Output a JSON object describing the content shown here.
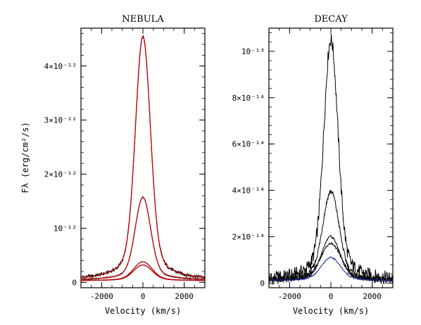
{
  "chart_data": [
    {
      "type": "line",
      "title": "NEBULA",
      "xlabel": "Velocity (km/s)",
      "ylabel": "Fλ (erg/cm²/s)",
      "xlim": [
        -3000,
        3000
      ],
      "ylim": [
        -1e-13,
        4.7e-12
      ],
      "x_ticks": [
        -2000,
        0,
        2000
      ],
      "y_ticks": [
        {
          "value": 0,
          "label": "0"
        },
        {
          "value": 1e-12,
          "label": "10⁻¹²"
        },
        {
          "value": 2e-12,
          "label": "2×10⁻¹²"
        },
        {
          "value": 3e-12,
          "label": "3×10⁻¹²"
        },
        {
          "value": 4e-12,
          "label": "4×10⁻¹²"
        }
      ],
      "series": [
        {
          "color": "#000000",
          "style": "observed",
          "peak": 4.5e-12,
          "width": 350,
          "base": 4.5e-14
        },
        {
          "color": "#c00000",
          "style": "model",
          "peak": 4.5e-12,
          "width": 350,
          "base": 4.5e-14
        },
        {
          "color": "#000000",
          "style": "observed",
          "peak": 1.53e-12,
          "width": 360,
          "base": 4e-14
        },
        {
          "color": "#c00000",
          "style": "model",
          "peak": 1.53e-12,
          "width": 360,
          "base": 4e-14
        },
        {
          "color": "#000000",
          "style": "observed",
          "peak": 3.5e-13,
          "width": 430,
          "base": 3e-14
        },
        {
          "color": "#c00000",
          "style": "model",
          "peak": 3.5e-13,
          "width": 430,
          "base": 3e-14
        },
        {
          "color": "#000000",
          "style": "observed",
          "peak": 2.9e-13,
          "width": 430,
          "base": 3e-14
        },
        {
          "color": "#c00000",
          "style": "model",
          "peak": 2.9e-13,
          "width": 430,
          "base": 3e-14
        }
      ]
    },
    {
      "type": "line",
      "title": "DECAY",
      "xlabel": "Velocity (km/s)",
      "ylabel": "",
      "xlim": [
        -3000,
        3000
      ],
      "ylim": [
        -2e-15,
        1.1e-13
      ],
      "x_ticks": [
        -2000,
        0,
        2000
      ],
      "y_ticks": [
        {
          "value": 0,
          "label": "0"
        },
        {
          "value": 2e-14,
          "label": "2×10⁻¹⁴"
        },
        {
          "value": 4e-14,
          "label": "4×10⁻¹⁴"
        },
        {
          "value": 6e-14,
          "label": "6×10⁻¹⁴"
        },
        {
          "value": 8e-14,
          "label": "8×10⁻¹⁴"
        },
        {
          "value": 1e-13,
          "label": "10⁻¹³"
        }
      ],
      "series": [
        {
          "color": "#000000",
          "style": "observed",
          "peak": 1.04e-13,
          "width": 330,
          "base": 1e-15
        },
        {
          "color": "#000000",
          "style": "observed",
          "peak": 3.85e-14,
          "width": 380,
          "base": 1e-15
        },
        {
          "color": "#000000",
          "style": "observed",
          "peak": 1.9e-14,
          "width": 420,
          "base": 1e-15
        },
        {
          "color": "#000000",
          "style": "observed",
          "peak": 1.6e-14,
          "width": 480,
          "base": 1e-15
        },
        {
          "color": "#2030a0",
          "style": "observed",
          "peak": 1e-14,
          "width": 450,
          "base": 1e-15
        }
      ]
    }
  ]
}
